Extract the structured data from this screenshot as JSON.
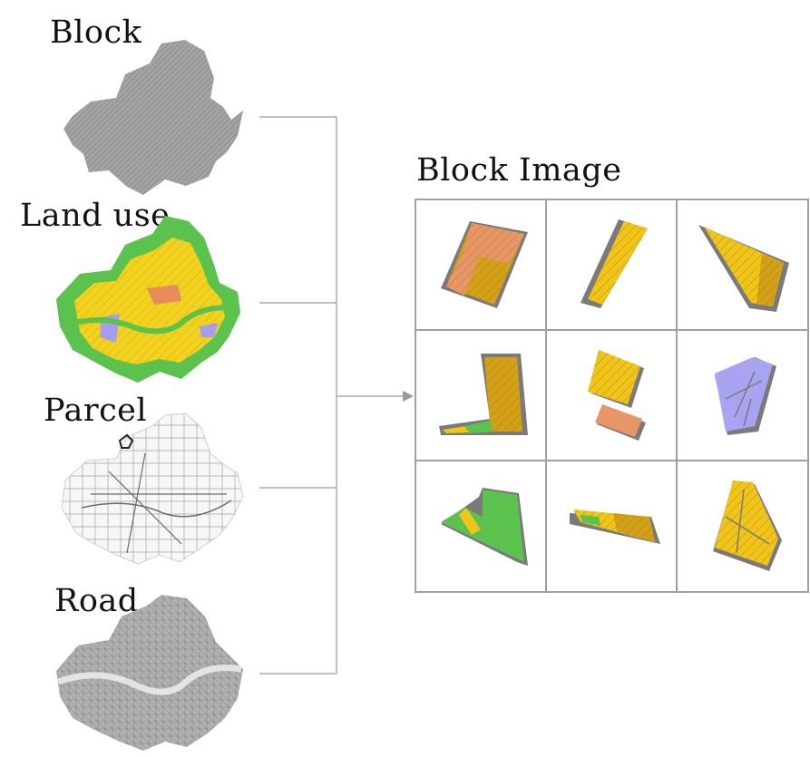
{
  "labels": {
    "block": "Block",
    "land_use": "Land use",
    "parcel": "Parcel",
    "road": "Road",
    "block_image": "Block Image"
  },
  "colors": {
    "block_map": "#9a9a9a",
    "landuse_green": "#5cc24e",
    "landuse_yellow": "#f2d21e",
    "landuse_orange": "#e78c5c",
    "landuse_purple": "#a59ef0",
    "parcel_lines": "#6a6a6a",
    "road_map": "#a8a8a8",
    "connector": "#9a9a9a",
    "grid_border": "#a0a0a0",
    "tile_shadow": "#7a7a7a",
    "tile_yellow": "#f0c419",
    "tile_mustard": "#d4a017",
    "tile_orange": "#e89567",
    "tile_purple": "#a9a4f2",
    "tile_green": "#5cc24e"
  },
  "block_image_grid": {
    "rows": 3,
    "cols": 3,
    "tiles": [
      "orange-mustard",
      "yellow",
      "yellow",
      "green-mustard",
      "yellow-orange",
      "purple",
      "green",
      "yellow-green",
      "yellow"
    ]
  }
}
